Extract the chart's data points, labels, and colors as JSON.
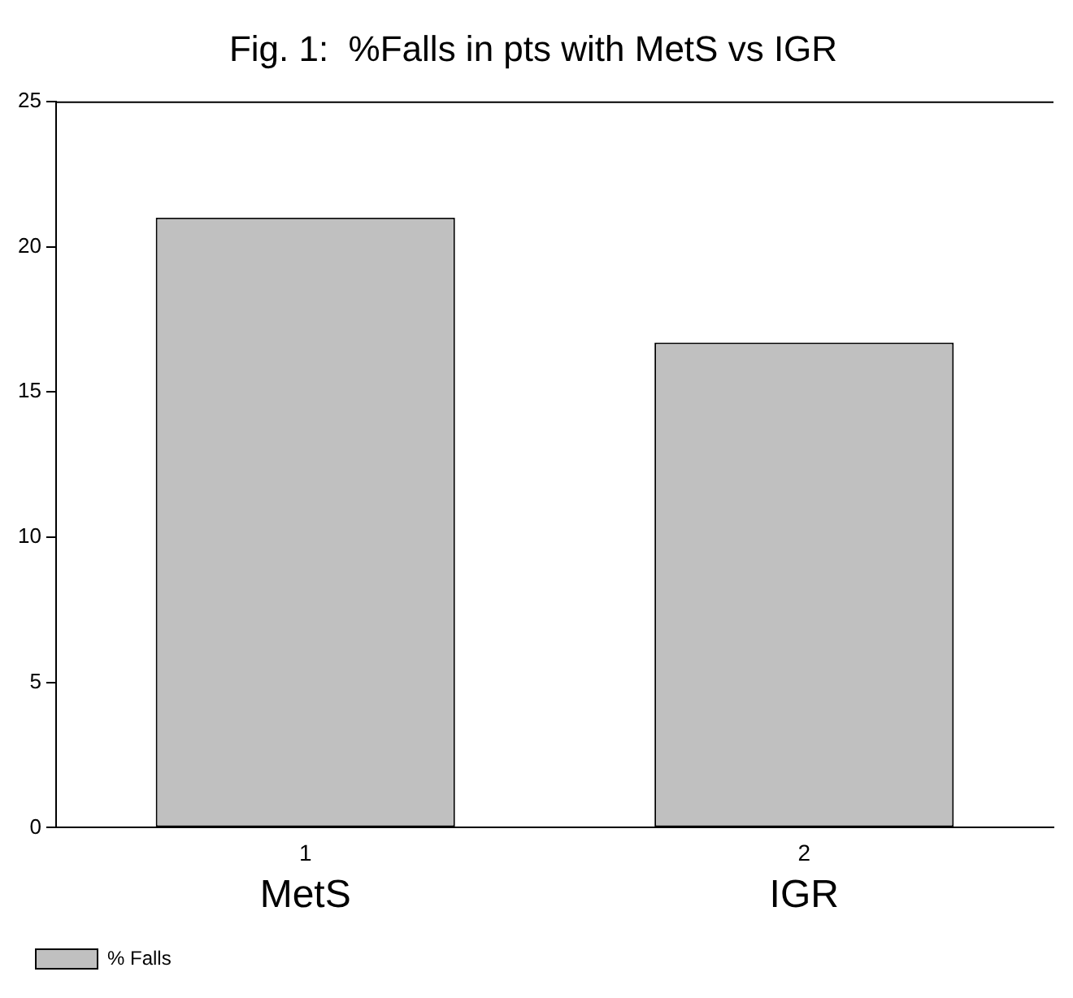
{
  "chart_data": {
    "type": "bar",
    "title": "Fig. 1:  %Falls in pts with MetS vs IGR",
    "categories": [
      "1",
      "2"
    ],
    "series": [
      {
        "name": "% Falls",
        "color": "#c0c0c0",
        "values": [
          21.0,
          16.7
        ]
      }
    ],
    "ylim": [
      0,
      25
    ],
    "yticks": [
      0,
      5,
      10,
      15,
      20,
      25
    ],
    "grid": false,
    "legend": "bottom left",
    "annotations": [
      "MetS",
      "IGR"
    ]
  }
}
